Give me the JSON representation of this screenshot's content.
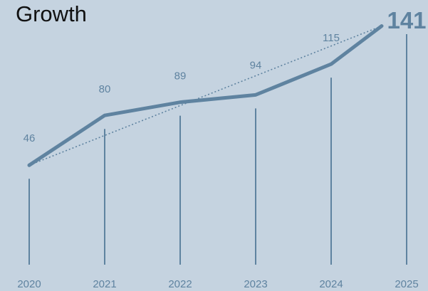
{
  "chart_data": {
    "type": "line",
    "title": "Growth",
    "xlabel": "",
    "ylabel": "",
    "categories": [
      "2020",
      "2021",
      "2022",
      "2023",
      "2024",
      "2025"
    ],
    "series": [
      {
        "values": [
          46,
          80,
          89,
          94,
          115,
          141
        ]
      }
    ],
    "trendline": {
      "from": 46,
      "to": 141,
      "style": "dotted"
    },
    "ylim": [
      0,
      150
    ],
    "grid": false,
    "colors": {
      "line": "#5f83a0",
      "label": "#5f83a0",
      "background": "#c5d3e0",
      "title": "#111111"
    }
  }
}
